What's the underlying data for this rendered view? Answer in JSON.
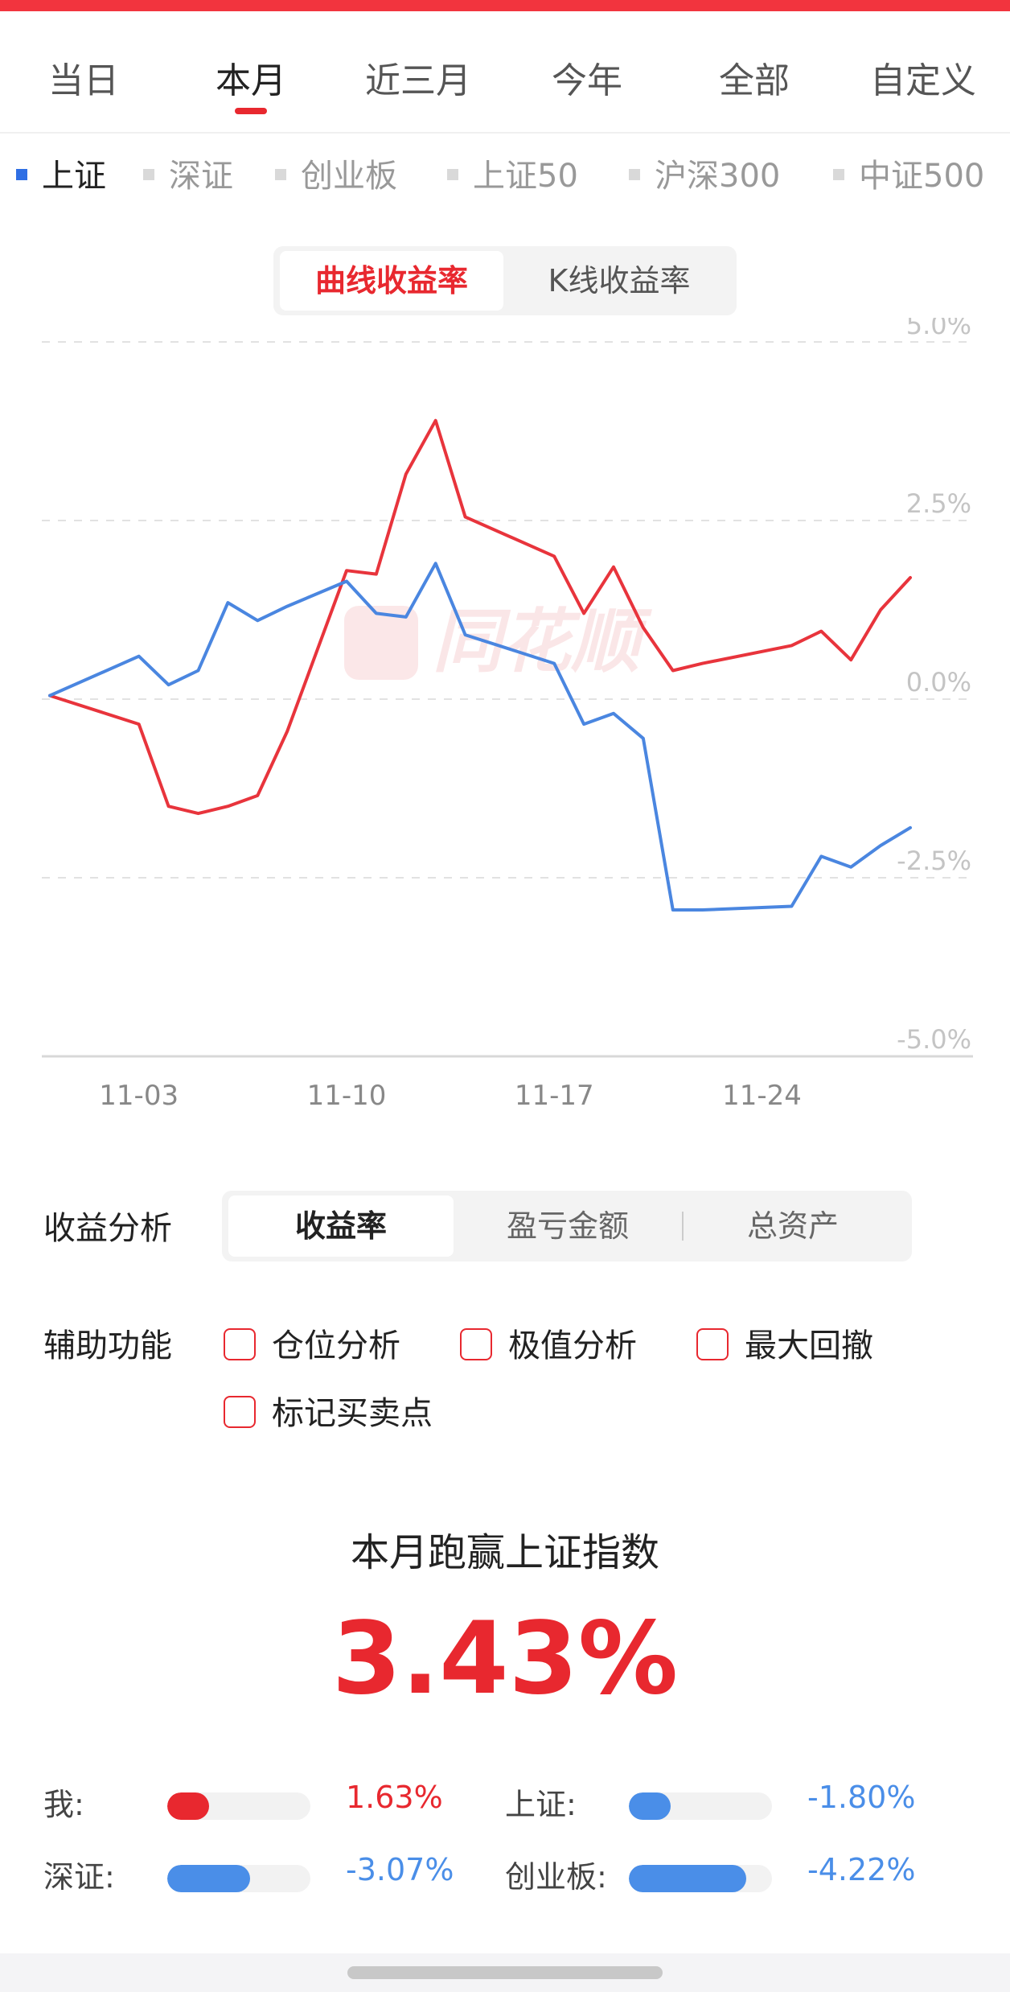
{
  "period_tabs": [
    "当日",
    "本月",
    "近三月",
    "今年",
    "全部",
    "自定义"
  ],
  "period_active": "本月",
  "index_tabs": [
    "上证",
    "深证",
    "创业板",
    "上证50",
    "沪深300",
    "中证500"
  ],
  "index_active": "上证",
  "chart_switch": {
    "selected": "曲线收益率",
    "other": "K线收益率"
  },
  "watermark": "同花顺",
  "chart_data": {
    "type": "line",
    "x_tick_labels": [
      "11-03",
      "11-10",
      "11-17",
      "11-24"
    ],
    "y_tick_labels": [
      "5.0%",
      "2.5%",
      "0.0%",
      "-2.5%",
      "-5.0%"
    ],
    "ylim": [
      -5.0,
      5.0
    ],
    "x": [
      0,
      3,
      4,
      5,
      6,
      7,
      8,
      10,
      11,
      12,
      13,
      14,
      17,
      18,
      19,
      20,
      21,
      22,
      25,
      26,
      27,
      28,
      29
    ],
    "series": [
      {
        "color": "#e8343c",
        "values": [
          0.05,
          -0.35,
          -1.5,
          -1.6,
          -1.5,
          -1.35,
          -0.45,
          1.8,
          1.75,
          3.15,
          3.9,
          2.55,
          2.0,
          1.2,
          1.85,
          1.0,
          0.4,
          0.5,
          0.75,
          0.95,
          0.55,
          1.25,
          1.7
        ]
      },
      {
        "color": "#4a86e0",
        "values": [
          0.05,
          0.6,
          0.2,
          0.4,
          1.35,
          1.1,
          1.3,
          1.65,
          1.2,
          1.15,
          1.9,
          0.9,
          0.5,
          -0.35,
          -0.2,
          -0.55,
          -2.95,
          -2.95,
          -2.9,
          -2.2,
          -2.35,
          -2.05,
          -1.8
        ]
      }
    ]
  },
  "analysis": {
    "label": "收益分析",
    "options": [
      "收益率",
      "盈亏金额",
      "总资产"
    ],
    "selected": "收益率"
  },
  "aux": {
    "label": "辅助功能",
    "items": [
      "仓位分析",
      "极值分析",
      "最大回撤",
      "标记买卖点"
    ]
  },
  "beat": {
    "title": "本月跑赢上证指数",
    "value": "3.43%"
  },
  "comparisons": [
    {
      "label": "我:",
      "value": "1.63%",
      "color": "#e8282f",
      "fill_pct": 0.29
    },
    {
      "label": "上证:",
      "value": "-1.80%",
      "color": "#4a8ee8",
      "fill_pct": 0.29
    },
    {
      "label": "深证:",
      "value": "-3.07%",
      "color": "#4a8ee8",
      "fill_pct": 0.58
    },
    {
      "label": "创业板:",
      "value": "-4.22%",
      "color": "#4a8ee8",
      "fill_pct": 0.82
    }
  ]
}
